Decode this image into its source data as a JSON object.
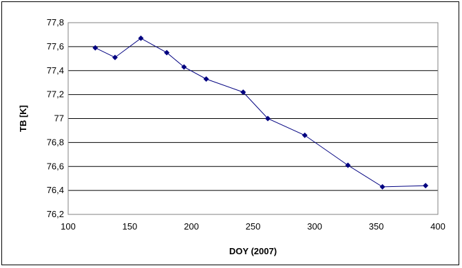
{
  "chart_data": {
    "type": "line",
    "title": "",
    "xlabel": "DOY (2007)",
    "ylabel": "TB [K]",
    "xlim": [
      100,
      400
    ],
    "ylim": [
      76.2,
      77.8
    ],
    "x_ticks": [
      100,
      150,
      200,
      250,
      300,
      350,
      400
    ],
    "x_tick_labels": [
      "100",
      "150",
      "200",
      "250",
      "300",
      "350",
      "400"
    ],
    "y_ticks": [
      76.2,
      76.4,
      76.6,
      76.8,
      77.0,
      77.2,
      77.4,
      77.6,
      77.8
    ],
    "y_tick_labels": [
      "76,2",
      "76,4",
      "76,6",
      "76,8",
      "77",
      "77,2",
      "77,4",
      "77,6",
      "77,8"
    ],
    "grid": "horizontal",
    "legend": "none",
    "series": [
      {
        "color": "#000080",
        "marker": "diamond",
        "x": [
          122,
          138,
          159,
          180,
          194,
          212,
          242,
          262,
          292,
          327,
          355,
          390
        ],
        "y": [
          77.59,
          77.51,
          77.67,
          77.55,
          77.43,
          77.33,
          77.22,
          77.0,
          76.86,
          76.61,
          76.43,
          76.44
        ]
      }
    ]
  }
}
